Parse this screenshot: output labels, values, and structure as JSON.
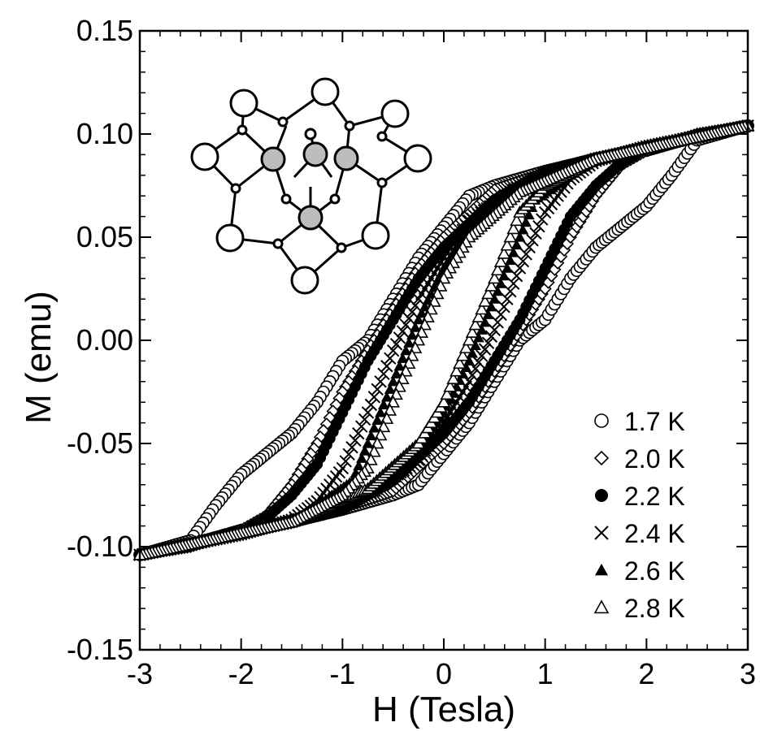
{
  "chart_data": {
    "type": "scatter",
    "title": "",
    "xlabel": "H (Tesla)",
    "ylabel": "M (emu)",
    "xlim": [
      -3,
      3
    ],
    "ylim": [
      -0.15,
      0.15
    ],
    "xticks": [
      -3,
      -2,
      -1,
      0,
      1,
      2,
      3
    ],
    "xtick_labels": [
      "-3",
      "-2",
      "-1",
      "0",
      "1",
      "2",
      "3"
    ],
    "yticks": [
      -0.15,
      -0.1,
      -0.05,
      0.0,
      0.05,
      0.1,
      0.15
    ],
    "ytick_labels": [
      "-0.15",
      "-0.10",
      "-0.05",
      "0.00",
      "0.05",
      "0.10",
      "0.15"
    ],
    "grid": false,
    "legend_position": "bottom-right",
    "series": [
      {
        "name": "1.7 K",
        "marker": "open-circle",
        "increasing": [
          [
            -3.0,
            -0.104
          ],
          [
            -2.5,
            -0.099
          ],
          [
            -2.0,
            -0.092
          ],
          [
            -1.5,
            -0.088
          ],
          [
            -1.0,
            -0.082
          ],
          [
            -0.5,
            -0.075
          ],
          [
            -0.25,
            -0.07
          ],
          [
            0.0,
            -0.055
          ],
          [
            0.25,
            -0.04
          ],
          [
            0.5,
            -0.02
          ],
          [
            0.75,
            0.0
          ],
          [
            1.0,
            0.01
          ],
          [
            1.25,
            0.03
          ],
          [
            1.5,
            0.045
          ],
          [
            1.75,
            0.055
          ],
          [
            2.0,
            0.065
          ],
          [
            2.25,
            0.08
          ],
          [
            2.5,
            0.097
          ],
          [
            3.0,
            0.104
          ]
        ],
        "decreasing": [
          [
            3.0,
            0.104
          ],
          [
            2.5,
            0.099
          ],
          [
            2.0,
            0.092
          ],
          [
            1.5,
            0.088
          ],
          [
            1.0,
            0.082
          ],
          [
            0.5,
            0.075
          ],
          [
            0.25,
            0.07
          ],
          [
            0.0,
            0.055
          ],
          [
            -0.25,
            0.04
          ],
          [
            -0.5,
            0.02
          ],
          [
            -0.75,
            0.0
          ],
          [
            -1.0,
            -0.01
          ],
          [
            -1.25,
            -0.03
          ],
          [
            -1.5,
            -0.045
          ],
          [
            -1.75,
            -0.055
          ],
          [
            -2.0,
            -0.065
          ],
          [
            -2.25,
            -0.08
          ],
          [
            -2.5,
            -0.097
          ],
          [
            -3.0,
            -0.104
          ]
        ]
      },
      {
        "name": "2.0 K",
        "marker": "open-diamond",
        "increasing": [
          [
            -3.0,
            -0.104
          ],
          [
            -2.0,
            -0.093
          ],
          [
            -1.0,
            -0.081
          ],
          [
            -0.5,
            -0.073
          ],
          [
            0.0,
            -0.05
          ],
          [
            0.25,
            -0.035
          ],
          [
            0.5,
            -0.015
          ],
          [
            0.75,
            0.005
          ],
          [
            1.0,
            0.025
          ],
          [
            1.25,
            0.05
          ],
          [
            1.5,
            0.07
          ],
          [
            1.75,
            0.085
          ],
          [
            2.0,
            0.092
          ],
          [
            2.5,
            0.1
          ],
          [
            3.0,
            0.104
          ]
        ],
        "decreasing": [
          [
            3.0,
            0.104
          ],
          [
            2.0,
            0.093
          ],
          [
            1.0,
            0.081
          ],
          [
            0.5,
            0.073
          ],
          [
            0.0,
            0.05
          ],
          [
            -0.25,
            0.035
          ],
          [
            -0.5,
            0.015
          ],
          [
            -0.75,
            -0.005
          ],
          [
            -1.0,
            -0.025
          ],
          [
            -1.25,
            -0.05
          ],
          [
            -1.5,
            -0.07
          ],
          [
            -1.75,
            -0.085
          ],
          [
            -2.0,
            -0.092
          ],
          [
            -2.5,
            -0.1
          ],
          [
            -3.0,
            -0.104
          ]
        ]
      },
      {
        "name": "2.2 K",
        "marker": "filled-circle",
        "increasing": [
          [
            -3.0,
            -0.104
          ],
          [
            -2.0,
            -0.094
          ],
          [
            -1.0,
            -0.082
          ],
          [
            -0.5,
            -0.068
          ],
          [
            0.0,
            -0.045
          ],
          [
            0.25,
            -0.03
          ],
          [
            0.5,
            -0.01
          ],
          [
            0.75,
            0.01
          ],
          [
            1.0,
            0.035
          ],
          [
            1.25,
            0.06
          ],
          [
            1.5,
            0.075
          ],
          [
            1.75,
            0.086
          ],
          [
            2.0,
            0.093
          ],
          [
            3.0,
            0.104
          ]
        ],
        "decreasing": [
          [
            3.0,
            0.104
          ],
          [
            2.0,
            0.094
          ],
          [
            1.0,
            0.082
          ],
          [
            0.5,
            0.068
          ],
          [
            0.0,
            0.045
          ],
          [
            -0.25,
            0.03
          ],
          [
            -0.5,
            0.01
          ],
          [
            -0.75,
            -0.01
          ],
          [
            -1.0,
            -0.035
          ],
          [
            -1.25,
            -0.06
          ],
          [
            -1.5,
            -0.075
          ],
          [
            -1.75,
            -0.086
          ],
          [
            -2.0,
            -0.093
          ],
          [
            -3.0,
            -0.104
          ]
        ]
      },
      {
        "name": "2.4 K",
        "marker": "cross",
        "increasing": [
          [
            -3.0,
            -0.104
          ],
          [
            -1.5,
            -0.088
          ],
          [
            -0.75,
            -0.075
          ],
          [
            -0.25,
            -0.058
          ],
          [
            0.0,
            -0.04
          ],
          [
            0.25,
            -0.02
          ],
          [
            0.5,
            0.005
          ],
          [
            0.75,
            0.035
          ],
          [
            1.0,
            0.062
          ],
          [
            1.25,
            0.078
          ],
          [
            1.5,
            0.087
          ],
          [
            2.0,
            0.094
          ],
          [
            3.0,
            0.104
          ]
        ],
        "decreasing": [
          [
            3.0,
            0.104
          ],
          [
            1.5,
            0.088
          ],
          [
            0.75,
            0.075
          ],
          [
            0.25,
            0.058
          ],
          [
            0.0,
            0.04
          ],
          [
            -0.25,
            0.02
          ],
          [
            -0.5,
            -0.005
          ],
          [
            -0.75,
            -0.035
          ],
          [
            -1.0,
            -0.062
          ],
          [
            -1.25,
            -0.078
          ],
          [
            -1.5,
            -0.087
          ],
          [
            -2.0,
            -0.094
          ],
          [
            -3.0,
            -0.104
          ]
        ]
      },
      {
        "name": "2.6 K",
        "marker": "filled-triangle",
        "increasing": [
          [
            -3.0,
            -0.104
          ],
          [
            -1.5,
            -0.088
          ],
          [
            -0.75,
            -0.074
          ],
          [
            -0.25,
            -0.055
          ],
          [
            0.0,
            -0.035
          ],
          [
            0.25,
            -0.01
          ],
          [
            0.5,
            0.02
          ],
          [
            0.75,
            0.05
          ],
          [
            0.9,
            0.068
          ],
          [
            1.25,
            0.08
          ],
          [
            1.5,
            0.088
          ],
          [
            3.0,
            0.104
          ]
        ],
        "decreasing": [
          [
            3.0,
            0.104
          ],
          [
            1.5,
            0.088
          ],
          [
            0.75,
            0.074
          ],
          [
            0.25,
            0.055
          ],
          [
            0.0,
            0.035
          ],
          [
            -0.25,
            0.01
          ],
          [
            -0.5,
            -0.02
          ],
          [
            -0.75,
            -0.05
          ],
          [
            -0.9,
            -0.068
          ],
          [
            -1.25,
            -0.08
          ],
          [
            -1.5,
            -0.088
          ],
          [
            -3.0,
            -0.104
          ]
        ]
      },
      {
        "name": "2.8 K",
        "marker": "open-triangle",
        "increasing": [
          [
            -3.0,
            -0.104
          ],
          [
            -1.5,
            -0.088
          ],
          [
            -0.75,
            -0.072
          ],
          [
            -0.25,
            -0.05
          ],
          [
            0.0,
            -0.03
          ],
          [
            0.25,
            0.0
          ],
          [
            0.5,
            0.03
          ],
          [
            0.75,
            0.062
          ],
          [
            1.0,
            0.075
          ],
          [
            1.5,
            0.088
          ],
          [
            3.0,
            0.104
          ]
        ],
        "decreasing": [
          [
            3.0,
            0.104
          ],
          [
            1.5,
            0.088
          ],
          [
            0.75,
            0.072
          ],
          [
            0.25,
            0.05
          ],
          [
            0.0,
            0.03
          ],
          [
            -0.25,
            0.0
          ],
          [
            -0.5,
            -0.03
          ],
          [
            -0.75,
            -0.062
          ],
          [
            -1.0,
            -0.075
          ],
          [
            -1.5,
            -0.088
          ],
          [
            -3.0,
            -0.104
          ]
        ]
      }
    ]
  }
}
